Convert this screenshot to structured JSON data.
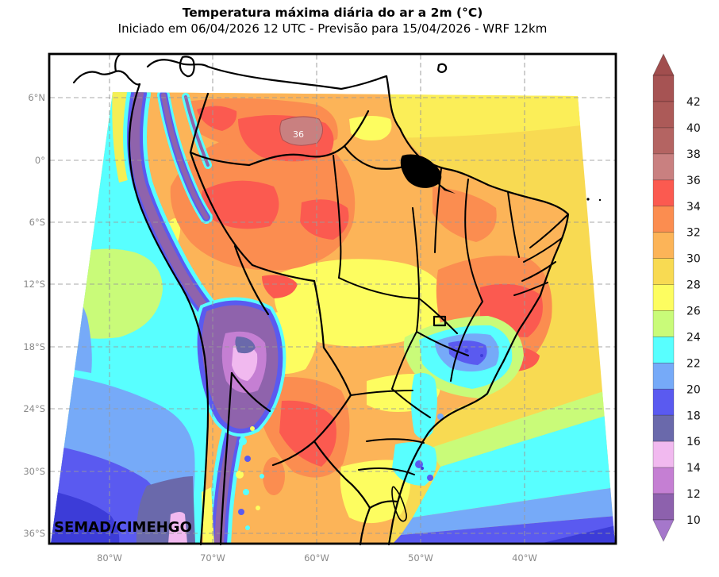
{
  "header": {
    "title": "Temperatura máxima diária do ar a 2m (°C)",
    "subtitle": "Iniciado em 06/04/2026 12 UTC - Previsão para 15/04/2026 - WRF 12km"
  },
  "map": {
    "watermark": "SEMAD/CIMEHGO",
    "contour_label": "36",
    "axis": {
      "lat_labels": [
        "6°N",
        "0°",
        "6°S",
        "12°S",
        "18°S",
        "24°S",
        "30°S",
        "36°S"
      ],
      "lon_labels": [
        "80°W",
        "70°W",
        "60°W",
        "50°W",
        "40°W"
      ]
    }
  },
  "colorbar": {
    "tick_labels": [
      "42",
      "40",
      "38",
      "36",
      "34",
      "32",
      "30",
      "28",
      "26",
      "24",
      "22",
      "20",
      "18",
      "16",
      "14",
      "12",
      "10"
    ],
    "segment_colors_top_to_bottom": [
      "#a65353",
      "#ac5a58",
      "#b46462",
      "#c98080",
      "#fb5a50",
      "#fb8d50",
      "#fcb458",
      "#f8da52",
      "#fdfd60",
      "#c9fb79",
      "#58ffff",
      "#76aaf8",
      "#5a5af0",
      "#6a69ab",
      "#f1b9ef",
      "#c57fd3",
      "#8d61ad"
    ],
    "arrow_top_color": "#a14e4e",
    "arrow_bottom_color": "#a577cb"
  },
  "palette": {
    "below_10": "#a577cb",
    "t10_12": "#8d61ad",
    "t12_14": "#c57fd3",
    "t14_16": "#f1b9ef",
    "t16_18": "#6a69ab",
    "t18_20": "#5a5af0",
    "t20_22": "#76aaf8",
    "t22_24": "#58ffff",
    "t24_26": "#c9fb79",
    "t26_28": "#fdfd60",
    "t28_30": "#f8da52",
    "t30_32": "#fcb458",
    "t32_34": "#fb8d50",
    "t34_36": "#fb5a50",
    "t36_38": "#c98080",
    "t38_40": "#b46462",
    "t40_42": "#ac5a58",
    "above_42": "#a65353"
  }
}
